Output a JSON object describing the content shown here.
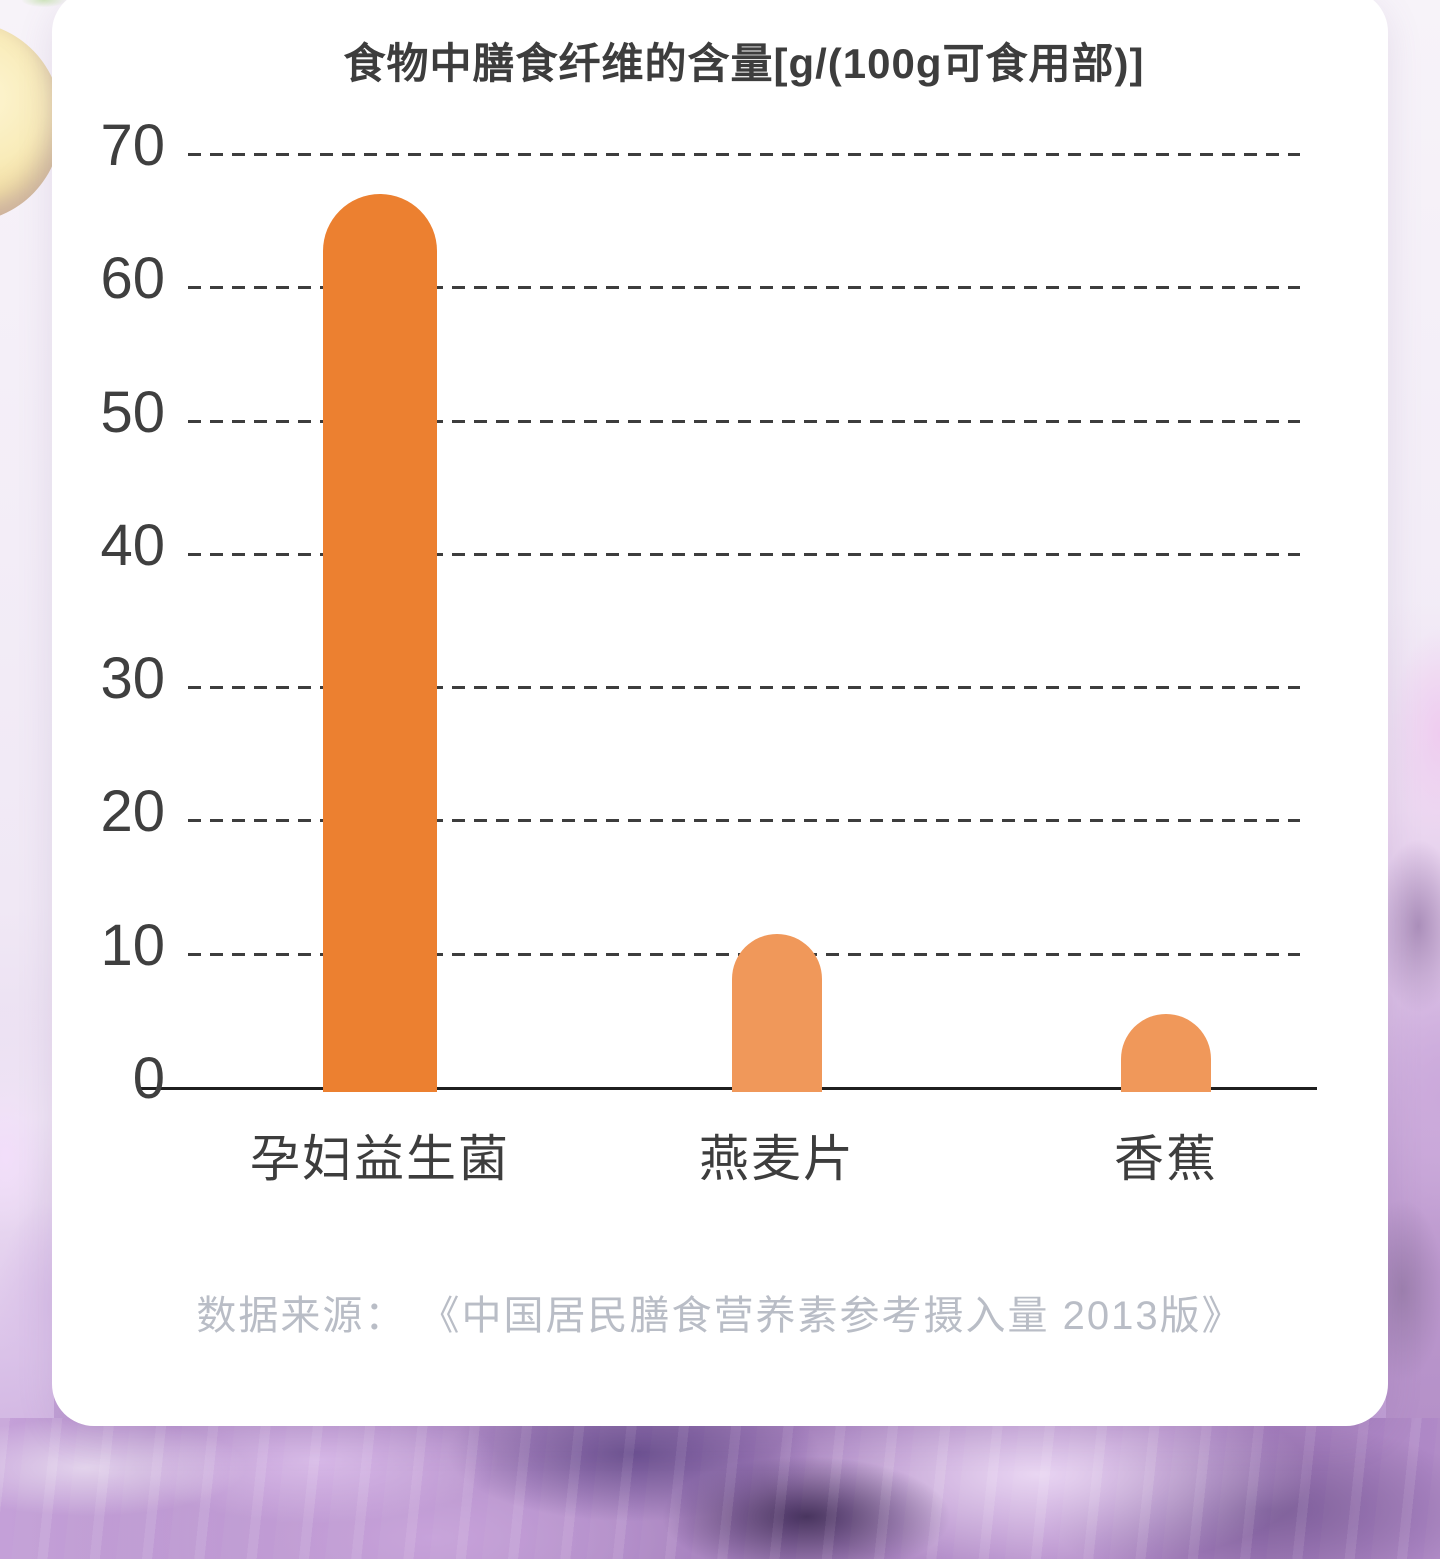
{
  "chart_data": {
    "type": "bar",
    "title": "食物中膳食纤维的含量[g/(100g可食用部)]",
    "categories": [
      "孕妇益生菌",
      "燕麦片",
      "香蕉"
    ],
    "values": [
      67,
      11.5,
      5.5
    ],
    "xlabel": "",
    "ylabel": "",
    "ylim": [
      0,
      70
    ],
    "yticks": [
      0,
      10,
      20,
      30,
      40,
      50,
      60,
      70
    ],
    "grid": "horizontal-dashed",
    "legend": "none",
    "bar_colors": [
      "#EC8030",
      "#F0985A",
      "#F0985A"
    ],
    "source": "数据来源： 《中国居民膳食营养素参考摄入量 2013版》"
  },
  "colors": {
    "bar_primary": "#EC8030",
    "bar_secondary": "#F0985A",
    "title_text": "#3D3D3D",
    "axis_text": "#3F3F3F",
    "gridline": "#3D3D3D",
    "axis_line": "#1F1F1F",
    "source_text": "#B9BDC6",
    "card_background": "#FFFFFF",
    "backdrop_liquid": "#A981C2"
  }
}
